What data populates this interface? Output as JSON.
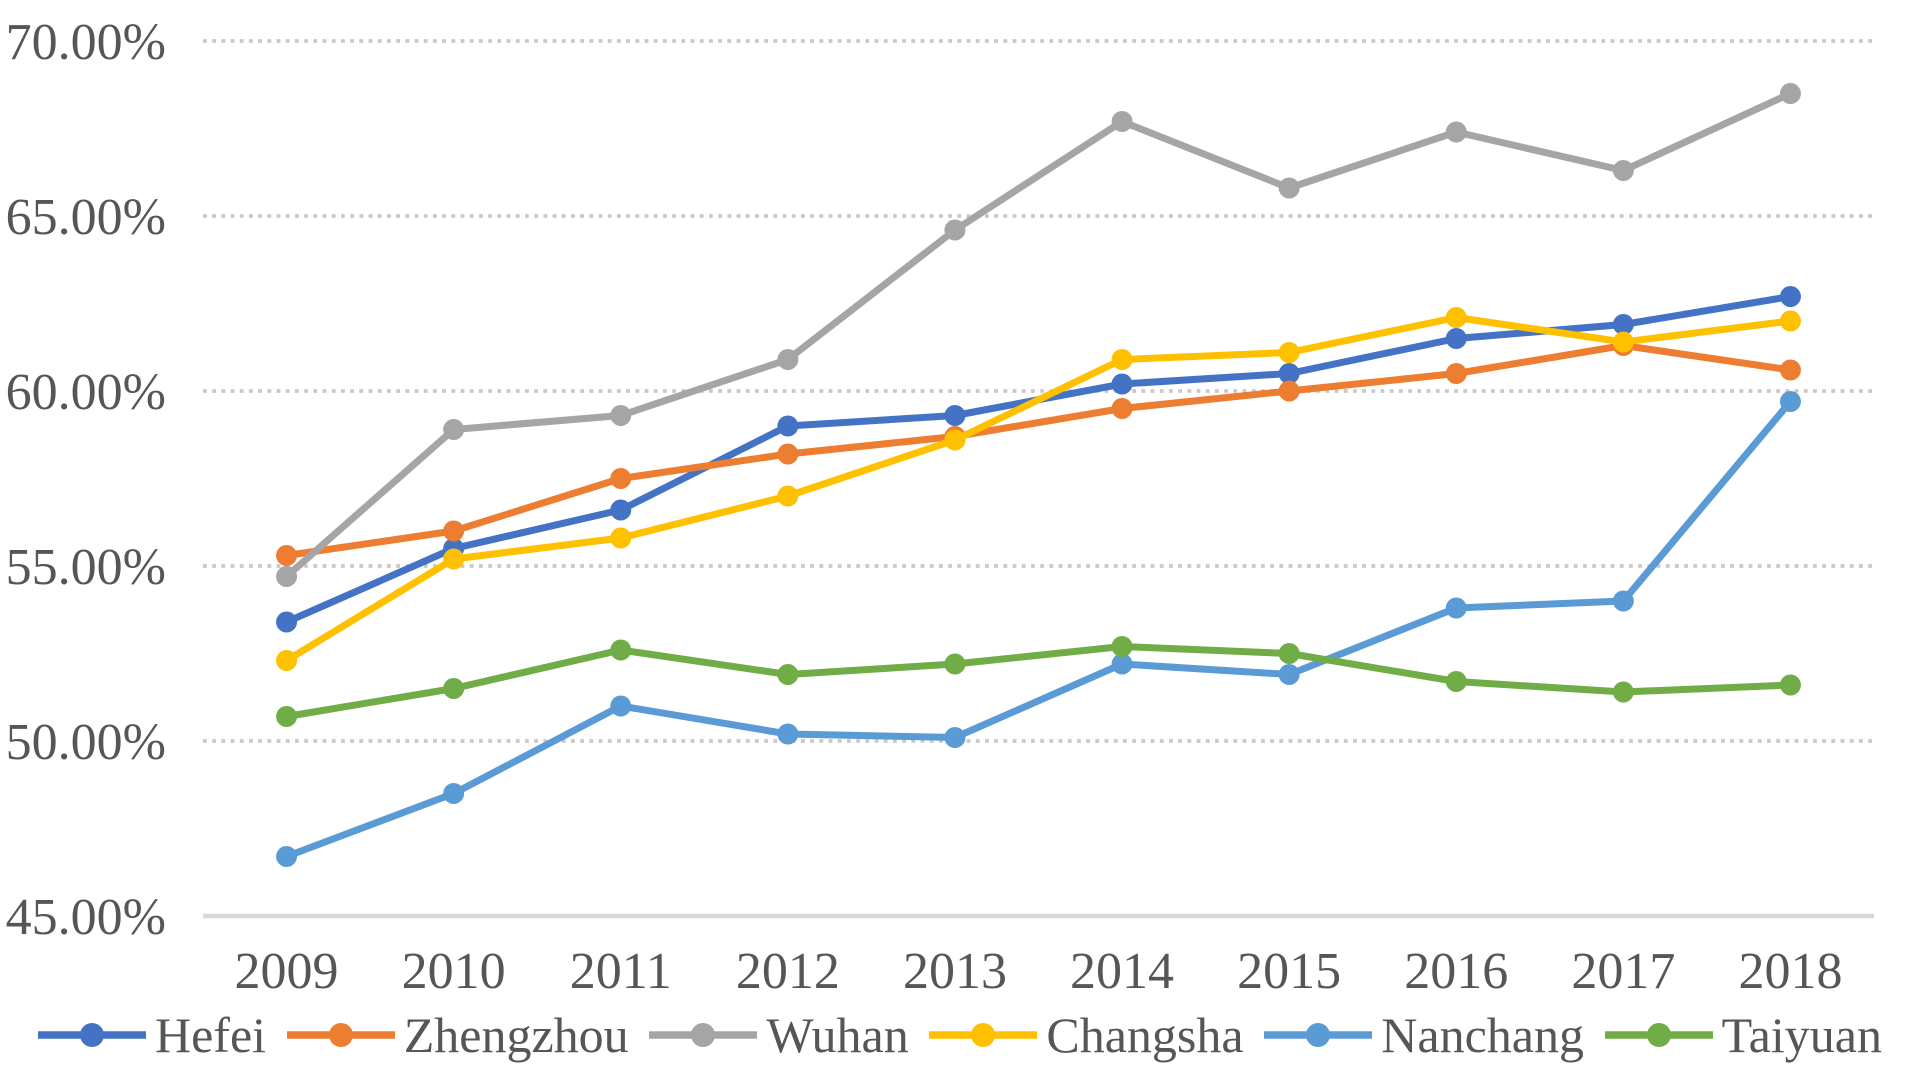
{
  "chart_data": {
    "type": "line",
    "title": "",
    "categories": [
      "2009",
      "2010",
      "2011",
      "2012",
      "2013",
      "2014",
      "2015",
      "2016",
      "2017",
      "2018"
    ],
    "y_axis": {
      "min": 45,
      "max": 70,
      "step": 5,
      "format": "percent-2dp",
      "labels": [
        "45.00%",
        "50.00%",
        "55.00%",
        "60.00%",
        "65.00%",
        "70.00%"
      ]
    },
    "grid": "horizontal-dotted",
    "legend_position": "bottom",
    "series": [
      {
        "name": "Hefei",
        "color": "#4472C4",
        "values": [
          53.4,
          55.5,
          56.6,
          59.0,
          59.3,
          60.2,
          60.5,
          61.5,
          61.9,
          62.7
        ]
      },
      {
        "name": "Zhengzhou",
        "color": "#ED7D31",
        "values": [
          55.3,
          56.0,
          57.5,
          58.2,
          58.7,
          59.5,
          60.0,
          60.5,
          61.3,
          60.6
        ]
      },
      {
        "name": "Wuhan",
        "color": "#A5A5A5",
        "values": [
          54.7,
          58.9,
          59.3,
          60.9,
          64.6,
          67.7,
          65.8,
          67.4,
          66.3,
          68.5
        ]
      },
      {
        "name": "Changsha",
        "color": "#FFC000",
        "values": [
          52.3,
          55.2,
          55.8,
          57.0,
          58.6,
          60.9,
          61.1,
          62.1,
          61.4,
          62.0
        ]
      },
      {
        "name": "Nanchang",
        "color": "#5B9BD5",
        "values": [
          46.7,
          48.5,
          51.0,
          50.2,
          50.1,
          52.2,
          51.9,
          53.8,
          54.0,
          59.7
        ]
      },
      {
        "name": "Taiyuan",
        "color": "#70AD47",
        "values": [
          50.7,
          51.5,
          52.6,
          51.9,
          52.2,
          52.7,
          52.5,
          51.7,
          51.4,
          51.6
        ]
      }
    ]
  }
}
